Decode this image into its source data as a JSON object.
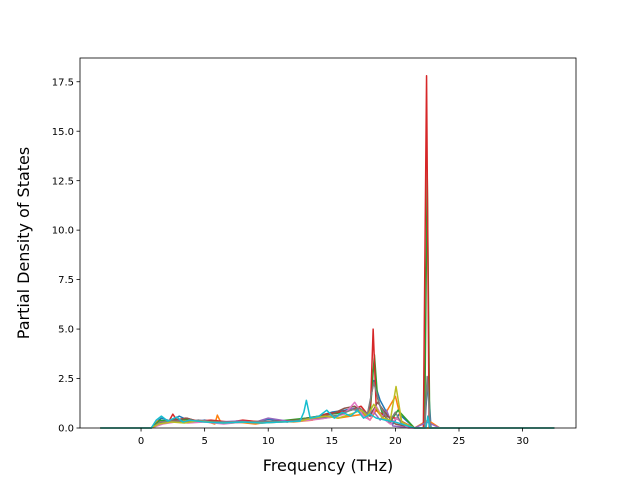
{
  "chart_data": {
    "type": "line",
    "title": "",
    "xlabel": "Frequency (THz)",
    "ylabel": "Partial Density of States",
    "xlim": [
      -4.8,
      34.2
    ],
    "ylim": [
      0,
      18.7
    ],
    "xticks": [
      0,
      5,
      10,
      15,
      20,
      25,
      30
    ],
    "yticks": [
      0.0,
      2.5,
      5.0,
      7.5,
      10.0,
      12.5,
      15.0,
      17.5
    ],
    "xtick_labels": [
      "0",
      "5",
      "10",
      "15",
      "20",
      "25",
      "30"
    ],
    "ytick_labels": [
      "0.0",
      "2.5",
      "5.0",
      "7.5",
      "10.0",
      "12.5",
      "15.0",
      "17.5"
    ],
    "grid": false,
    "legend": false,
    "series": [
      {
        "color": "#1f77b4",
        "x": [
          -3.2,
          0.8,
          1.2,
          1.6,
          2.3,
          3.0,
          4.0,
          5.0,
          6.0,
          7.5,
          9.0,
          10.0,
          11.5,
          13.0,
          14.0,
          15.0,
          16.0,
          16.8,
          17.3,
          17.8,
          18.3,
          18.8,
          19.3,
          19.8,
          20.3,
          21.5,
          22.3,
          22.55,
          22.8,
          24.0,
          32.5
        ],
        "y": [
          0,
          0,
          0.3,
          0.5,
          0.35,
          0.6,
          0.3,
          0.4,
          0.25,
          0.35,
          0.3,
          0.45,
          0.3,
          0.5,
          0.6,
          0.8,
          0.9,
          1.0,
          0.8,
          0.5,
          2.4,
          1.4,
          0.8,
          0.2,
          0.7,
          0,
          0,
          2.5,
          0,
          0,
          0
        ]
      },
      {
        "color": "#ff7f0e",
        "x": [
          -3.2,
          0.8,
          1.3,
          2.0,
          3.0,
          4.0,
          5.0,
          5.8,
          6.0,
          6.3,
          7.5,
          9.0,
          10.5,
          12.0,
          13.5,
          14.5,
          15.5,
          16.5,
          17.5,
          18.0,
          18.5,
          19.0,
          20.0,
          20.5,
          21.5,
          22.55,
          23.5,
          32.5
        ],
        "y": [
          0,
          0,
          0.35,
          0.3,
          0.45,
          0.3,
          0.35,
          0.2,
          0.65,
          0.25,
          0.3,
          0.2,
          0.35,
          0.3,
          0.4,
          0.6,
          0.5,
          0.6,
          0.7,
          0.4,
          0.9,
          0.5,
          1.6,
          0.3,
          0,
          0.4,
          0,
          0
        ]
      },
      {
        "color": "#2ca02c",
        "x": [
          -3.2,
          0.8,
          1.5,
          2.5,
          3.5,
          4.5,
          5.5,
          7.0,
          8.5,
          10.0,
          11.5,
          13.0,
          14.0,
          15.0,
          16.0,
          17.0,
          17.6,
          18.0,
          18.35,
          18.6,
          19.0,
          19.6,
          20.2,
          21.5,
          22.3,
          22.5,
          22.7,
          24.0,
          32.5
        ],
        "y": [
          0,
          0,
          0.4,
          0.3,
          0.45,
          0.3,
          0.35,
          0.25,
          0.35,
          0.3,
          0.4,
          0.5,
          0.6,
          0.7,
          0.8,
          1.0,
          0.8,
          0.6,
          3.7,
          1.5,
          0.7,
          0.3,
          0.9,
          0,
          0,
          12.9,
          0,
          0,
          0
        ]
      },
      {
        "color": "#d62728",
        "x": [
          -3.2,
          0.8,
          1.6,
          2.2,
          2.5,
          2.8,
          3.5,
          4.5,
          5.5,
          7.0,
          8.0,
          9.5,
          11.0,
          12.5,
          13.5,
          14.5,
          15.5,
          16.5,
          17.3,
          17.8,
          18.05,
          18.25,
          18.5,
          19.2,
          20.0,
          21.5,
          22.2,
          22.45,
          22.65,
          24.0,
          32.5
        ],
        "y": [
          0,
          0,
          0.3,
          0.35,
          0.7,
          0.4,
          0.5,
          0.35,
          0.4,
          0.3,
          0.4,
          0.3,
          0.35,
          0.4,
          0.5,
          0.7,
          0.8,
          0.9,
          1.1,
          0.7,
          1.2,
          5.0,
          0.9,
          0.6,
          0.5,
          0,
          0,
          17.8,
          0,
          0,
          0
        ]
      },
      {
        "color": "#9467bd",
        "x": [
          -3.2,
          0.8,
          1.5,
          2.5,
          3.5,
          4.5,
          6.0,
          7.5,
          9.0,
          10.0,
          11.5,
          13.0,
          14.5,
          15.5,
          16.5,
          17.2,
          17.7,
          18.2,
          18.8,
          19.3,
          19.8,
          21.5,
          22.5,
          23.5,
          32.5
        ],
        "y": [
          0,
          0,
          0.25,
          0.4,
          0.3,
          0.4,
          0.3,
          0.35,
          0.3,
          0.5,
          0.35,
          0.4,
          0.5,
          0.6,
          1.0,
          0.8,
          0.5,
          0.9,
          0.4,
          0.9,
          0.1,
          0,
          0.3,
          0,
          0
        ]
      },
      {
        "color": "#8c564b",
        "x": [
          -3.2,
          0.8,
          1.6,
          2.6,
          3.6,
          4.6,
          5.6,
          7.0,
          8.5,
          10.0,
          11.0,
          12.5,
          14.0,
          15.0,
          16.0,
          16.8,
          17.4,
          18.0,
          18.6,
          19.4,
          20.0,
          21.5,
          32.5
        ],
        "y": [
          0,
          0,
          0.3,
          0.4,
          0.5,
          0.3,
          0.35,
          0.25,
          0.3,
          0.35,
          0.3,
          0.4,
          0.6,
          0.7,
          1.0,
          1.1,
          0.8,
          0.6,
          1.3,
          0.6,
          0.2,
          0,
          0
        ]
      },
      {
        "color": "#e377c2",
        "x": [
          -3.2,
          0.8,
          1.7,
          2.7,
          3.7,
          5.0,
          6.5,
          8.0,
          9.5,
          11.0,
          12.5,
          14.0,
          15.0,
          16.0,
          16.8,
          17.5,
          18.0,
          18.5,
          19.0,
          19.6,
          20.1,
          21.0,
          32.5
        ],
        "y": [
          0,
          0,
          0.2,
          0.3,
          0.25,
          0.3,
          0.2,
          0.3,
          0.25,
          0.3,
          0.35,
          0.45,
          0.55,
          0.7,
          1.3,
          0.6,
          0.4,
          1.1,
          0.5,
          0.2,
          0.5,
          0,
          0
        ]
      },
      {
        "color": "#7f7f7f",
        "x": [
          -3.2,
          0.8,
          1.5,
          2.5,
          3.5,
          4.5,
          5.5,
          7.0,
          8.5,
          10.0,
          11.5,
          13.0,
          14.5,
          15.5,
          16.5,
          17.2,
          17.8,
          18.3,
          18.8,
          19.5,
          20.0,
          20.5,
          21.5,
          22.3,
          22.5,
          22.75,
          24.0,
          32.5
        ],
        "y": [
          0,
          0,
          0.3,
          0.35,
          0.3,
          0.4,
          0.3,
          0.3,
          0.3,
          0.35,
          0.3,
          0.45,
          0.55,
          0.65,
          0.9,
          1.0,
          0.7,
          2.3,
          1.1,
          0.3,
          0.8,
          0.2,
          0,
          0,
          2.6,
          0,
          0,
          0
        ]
      },
      {
        "color": "#bcbd22",
        "x": [
          -3.2,
          0.8,
          1.4,
          2.4,
          3.4,
          4.4,
          5.4,
          6.5,
          8.0,
          9.5,
          11.0,
          12.5,
          13.5,
          14.5,
          15.5,
          16.5,
          17.3,
          17.8,
          18.3,
          19.0,
          19.6,
          20.05,
          20.5,
          21.5,
          32.5
        ],
        "y": [
          0,
          0,
          0.2,
          0.3,
          0.25,
          0.35,
          0.3,
          0.25,
          0.3,
          0.25,
          0.3,
          0.35,
          0.5,
          0.6,
          0.5,
          0.7,
          0.9,
          0.6,
          1.2,
          0.5,
          0.4,
          2.1,
          0.3,
          0,
          0
        ]
      },
      {
        "color": "#17becf",
        "x": [
          -3.2,
          0.8,
          1.2,
          1.6,
          2.1,
          2.8,
          3.3,
          3.8,
          5.0,
          6.5,
          8.0,
          9.5,
          11.0,
          12.5,
          12.8,
          13.0,
          13.3,
          14.0,
          14.6,
          15.2,
          15.8,
          16.5,
          17.0,
          17.5,
          18.0,
          18.5,
          19.2,
          20.0,
          21.5,
          22.4,
          22.55,
          22.7,
          24.0,
          32.5
        ],
        "y": [
          0,
          0,
          0.4,
          0.6,
          0.35,
          0.55,
          0.3,
          0.4,
          0.3,
          0.25,
          0.3,
          0.25,
          0.3,
          0.35,
          0.8,
          1.4,
          0.5,
          0.6,
          0.9,
          0.5,
          0.8,
          0.6,
          0.9,
          0.5,
          0.7,
          0.5,
          0.4,
          0.3,
          0,
          0,
          0.6,
          0,
          0,
          0
        ]
      }
    ]
  }
}
